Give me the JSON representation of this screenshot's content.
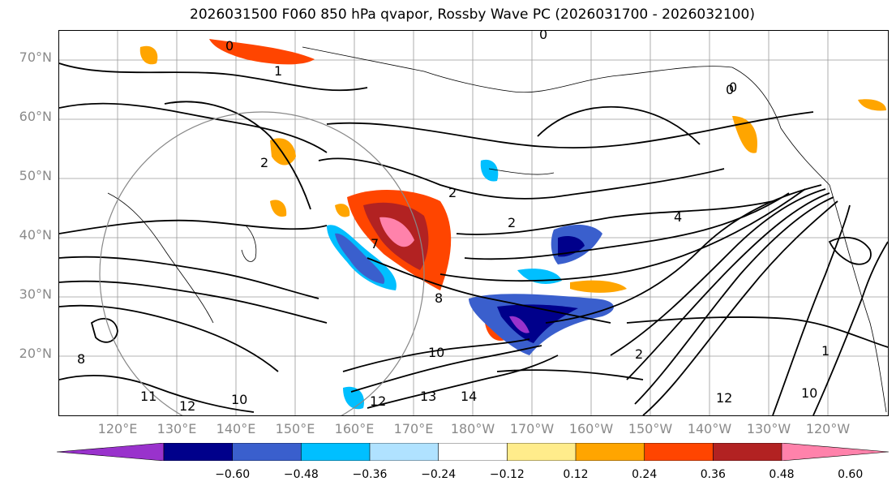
{
  "title": "2026031500 F060 850 hPa qvapor, Rossby Wave PC (2026031700 - 2026032100)",
  "lat_labels": [
    "70°N",
    "60°N",
    "50°N",
    "40°N",
    "30°N",
    "20°N"
  ],
  "lon_labels": [
    "120°E",
    "130°E",
    "140°E",
    "150°E",
    "160°E",
    "170°E",
    "180°W",
    "170°W",
    "160°W",
    "150°W",
    "140°W",
    "130°W",
    "120°W"
  ],
  "colorbar": {
    "ticks": [
      "−0.60",
      "−0.48",
      "−0.36",
      "−0.24",
      "−0.12",
      "0.12",
      "0.24",
      "0.36",
      "0.48",
      "0.60"
    ],
    "colors": [
      "#9932cc",
      "#00008b",
      "#3a5fcd",
      "#00bfff",
      "#b0e2ff",
      "#ffffff",
      "#ffec8b",
      "#ffa500",
      "#ff4500",
      "#b22222",
      "#ff82ab"
    ]
  },
  "contour_labels": [
    "0",
    "1",
    "0",
    "0",
    "2",
    "2",
    "2",
    "4",
    "7",
    "8",
    "10",
    "10",
    "11",
    "12",
    "12",
    "13",
    "14",
    "1",
    "12",
    "10",
    "8",
    "2",
    "0"
  ]
}
